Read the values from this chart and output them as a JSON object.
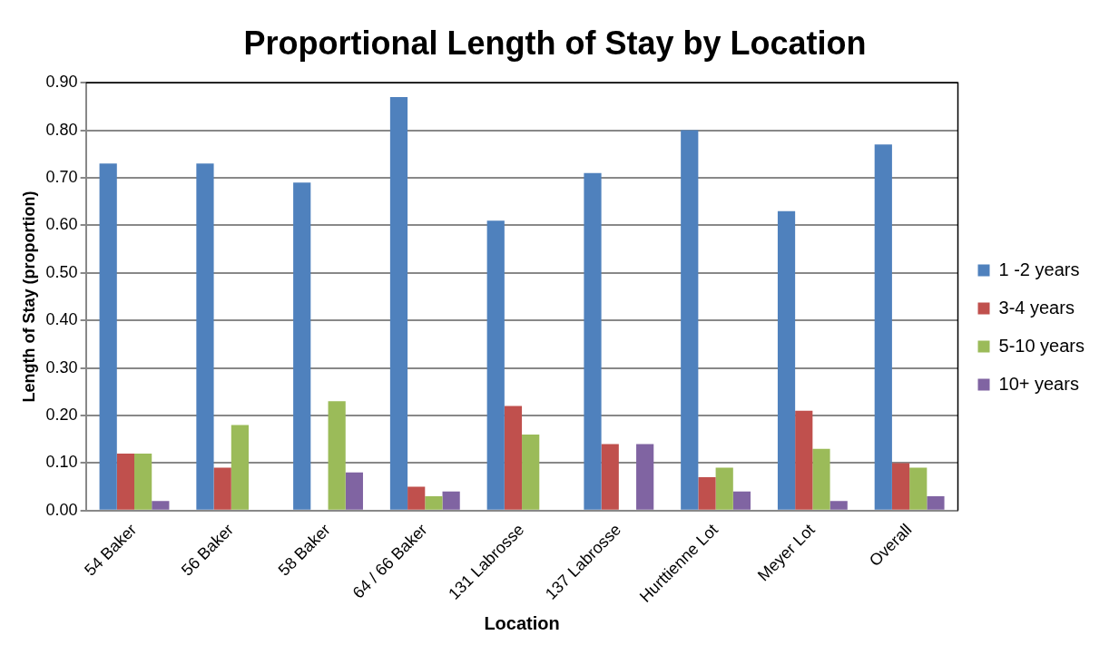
{
  "chart_data": {
    "type": "bar",
    "title": "Proportional Length of Stay by Location",
    "xlabel": "Location",
    "ylabel": "Length of Stay (proportion)",
    "categories": [
      "54 Baker",
      "56 Baker",
      "58 Baker",
      "64 / 66 Baker",
      "131 Labrosse",
      "137 Labrosse",
      "Hurttienne Lot",
      "Meyer Lot",
      "Overall"
    ],
    "series": [
      {
        "name": "1 -2 years",
        "color": "#4f81bd",
        "values": [
          0.73,
          0.73,
          0.69,
          0.87,
          0.61,
          0.71,
          0.8,
          0.63,
          0.77
        ]
      },
      {
        "name": "3-4 years",
        "color": "#c0504d",
        "values": [
          0.12,
          0.09,
          0,
          0.05,
          0.22,
          0.14,
          0.07,
          0.21,
          0.1
        ]
      },
      {
        "name": "5-10 years",
        "color": "#9bbb59",
        "values": [
          0.12,
          0.18,
          0.23,
          0.03,
          0.16,
          0,
          0.09,
          0.13,
          0.09
        ]
      },
      {
        "name": "10+ years",
        "color": "#8064a2",
        "values": [
          0.02,
          0,
          0.08,
          0.04,
          0,
          0.14,
          0.04,
          0.02,
          0.03
        ]
      }
    ],
    "ylim": [
      0,
      0.9
    ],
    "yticks": [
      {
        "value": 0,
        "label": "0.00"
      },
      {
        "value": 0.1,
        "label": "0.10"
      },
      {
        "value": 0.2,
        "label": "0.20"
      },
      {
        "value": 0.3,
        "label": "0.30"
      },
      {
        "value": 0.4,
        "label": "0.40"
      },
      {
        "value": 0.5,
        "label": "0.50"
      },
      {
        "value": 0.6,
        "label": "0.60"
      },
      {
        "value": 0.7,
        "label": "0.70"
      },
      {
        "value": 0.8,
        "label": "0.80"
      },
      {
        "value": 0.9,
        "label": "0.90"
      }
    ],
    "grid": "y",
    "legend": "right"
  }
}
